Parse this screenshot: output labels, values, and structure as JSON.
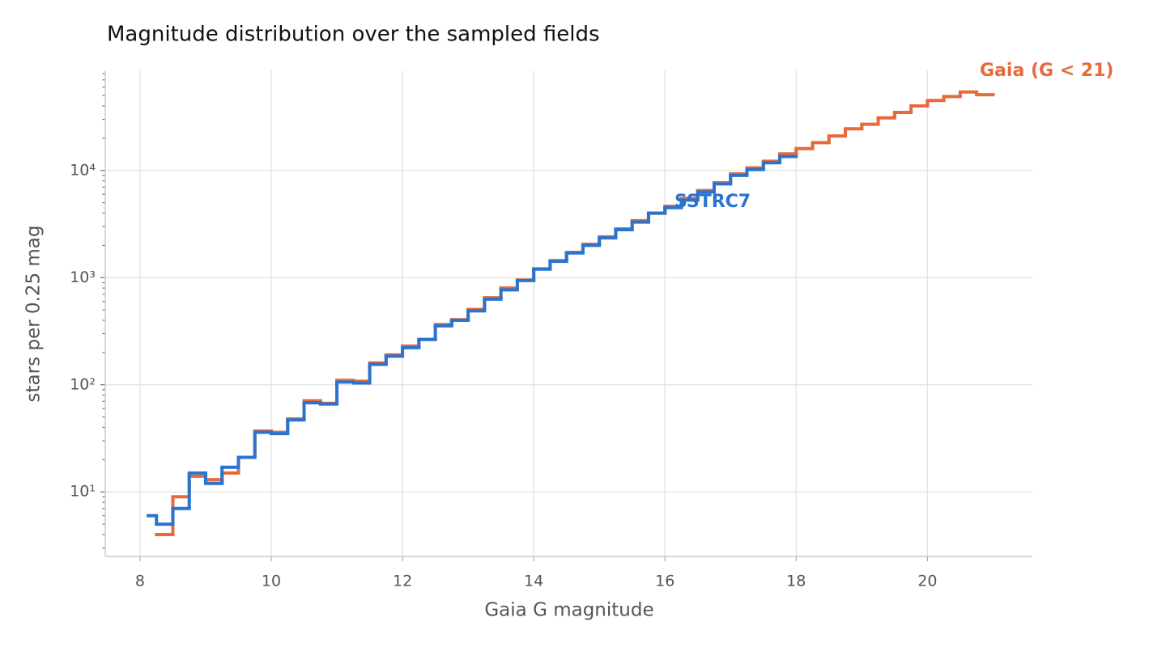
{
  "chart_data": {
    "type": "step",
    "title": "Magnitude distribution over the sampled fields",
    "x_label": "Gaia G magnitude",
    "y_label": "stars per 0.25 mag",
    "xlim": [
      7.47,
      21.6
    ],
    "ylim": [
      2.5,
      86000
    ],
    "xticks": [
      8,
      10,
      12,
      14,
      16,
      18,
      20
    ],
    "yticks": [
      {
        "value": 10,
        "label": "10¹"
      },
      {
        "value": 100,
        "label": "10²"
      },
      {
        "value": 1000,
        "label": "10³"
      },
      {
        "value": 10000,
        "label": "10⁴"
      }
    ],
    "yminorticks": [
      3,
      4,
      5,
      6,
      7,
      8,
      9,
      20,
      30,
      40,
      50,
      60,
      70,
      80,
      90,
      200,
      300,
      400,
      500,
      600,
      700,
      800,
      900,
      2000,
      3000,
      4000,
      5000,
      6000,
      7000,
      8000,
      9000,
      20000,
      30000,
      40000,
      50000,
      60000,
      70000,
      80000
    ],
    "log_y": true,
    "grid": true,
    "series": [
      {
        "name": "Gaia (G < 21)",
        "color": "#e8693a",
        "bins": [
          8.25,
          8.5,
          8.75,
          9,
          9.25,
          9.5,
          9.75,
          10,
          10.25,
          10.5,
          10.75,
          11,
          11.25,
          11.5,
          11.75,
          12,
          12.25,
          12.5,
          12.75,
          13,
          13.25,
          13.5,
          13.75,
          14,
          14.25,
          14.5,
          14.75,
          15,
          15.25,
          15.5,
          15.75,
          16,
          16.25,
          16.5,
          16.75,
          17,
          17.25,
          17.5,
          17.75,
          18,
          18.25,
          18.5,
          18.75,
          19,
          19.25,
          19.5,
          19.75,
          20,
          20.25,
          20.5,
          20.75,
          21
        ],
        "values": [
          4,
          9,
          14,
          13,
          15,
          21,
          37,
          36,
          48,
          71,
          67,
          110,
          108,
          160,
          190,
          230,
          265,
          365,
          405,
          505,
          650,
          800,
          950,
          1210,
          1440,
          1720,
          2050,
          2400,
          2850,
          3400,
          3980,
          4640,
          5500,
          6500,
          7700,
          9300,
          10600,
          12200,
          14300,
          16000,
          18200,
          21000,
          24500,
          27000,
          31000,
          34800,
          40000,
          45000,
          49000,
          54000,
          51000
        ]
      },
      {
        "name": "SSTRC7",
        "color": "#2a74d0",
        "bins": [
          8.125,
          8.25,
          8.5,
          8.75,
          9,
          9.25,
          9.5,
          9.75,
          10,
          10.25,
          10.5,
          10.75,
          11,
          11.25,
          11.5,
          11.75,
          12,
          12.25,
          12.5,
          12.75,
          13,
          13.25,
          13.5,
          13.75,
          14,
          14.25,
          14.5,
          14.75,
          15,
          15.25,
          15.5,
          15.75,
          16,
          16.25,
          16.5,
          16.75,
          17,
          17.25,
          17.5,
          17.75,
          18
        ],
        "values": [
          6,
          5,
          7,
          15,
          12,
          17,
          21,
          36,
          35,
          47,
          68,
          66,
          106,
          104,
          155,
          185,
          222,
          265,
          355,
          400,
          490,
          630,
          770,
          940,
          1200,
          1420,
          1700,
          2000,
          2350,
          2800,
          3300,
          4000,
          4500,
          5300,
          6300,
          7500,
          9000,
          10200,
          11800,
          13500
        ]
      }
    ]
  }
}
